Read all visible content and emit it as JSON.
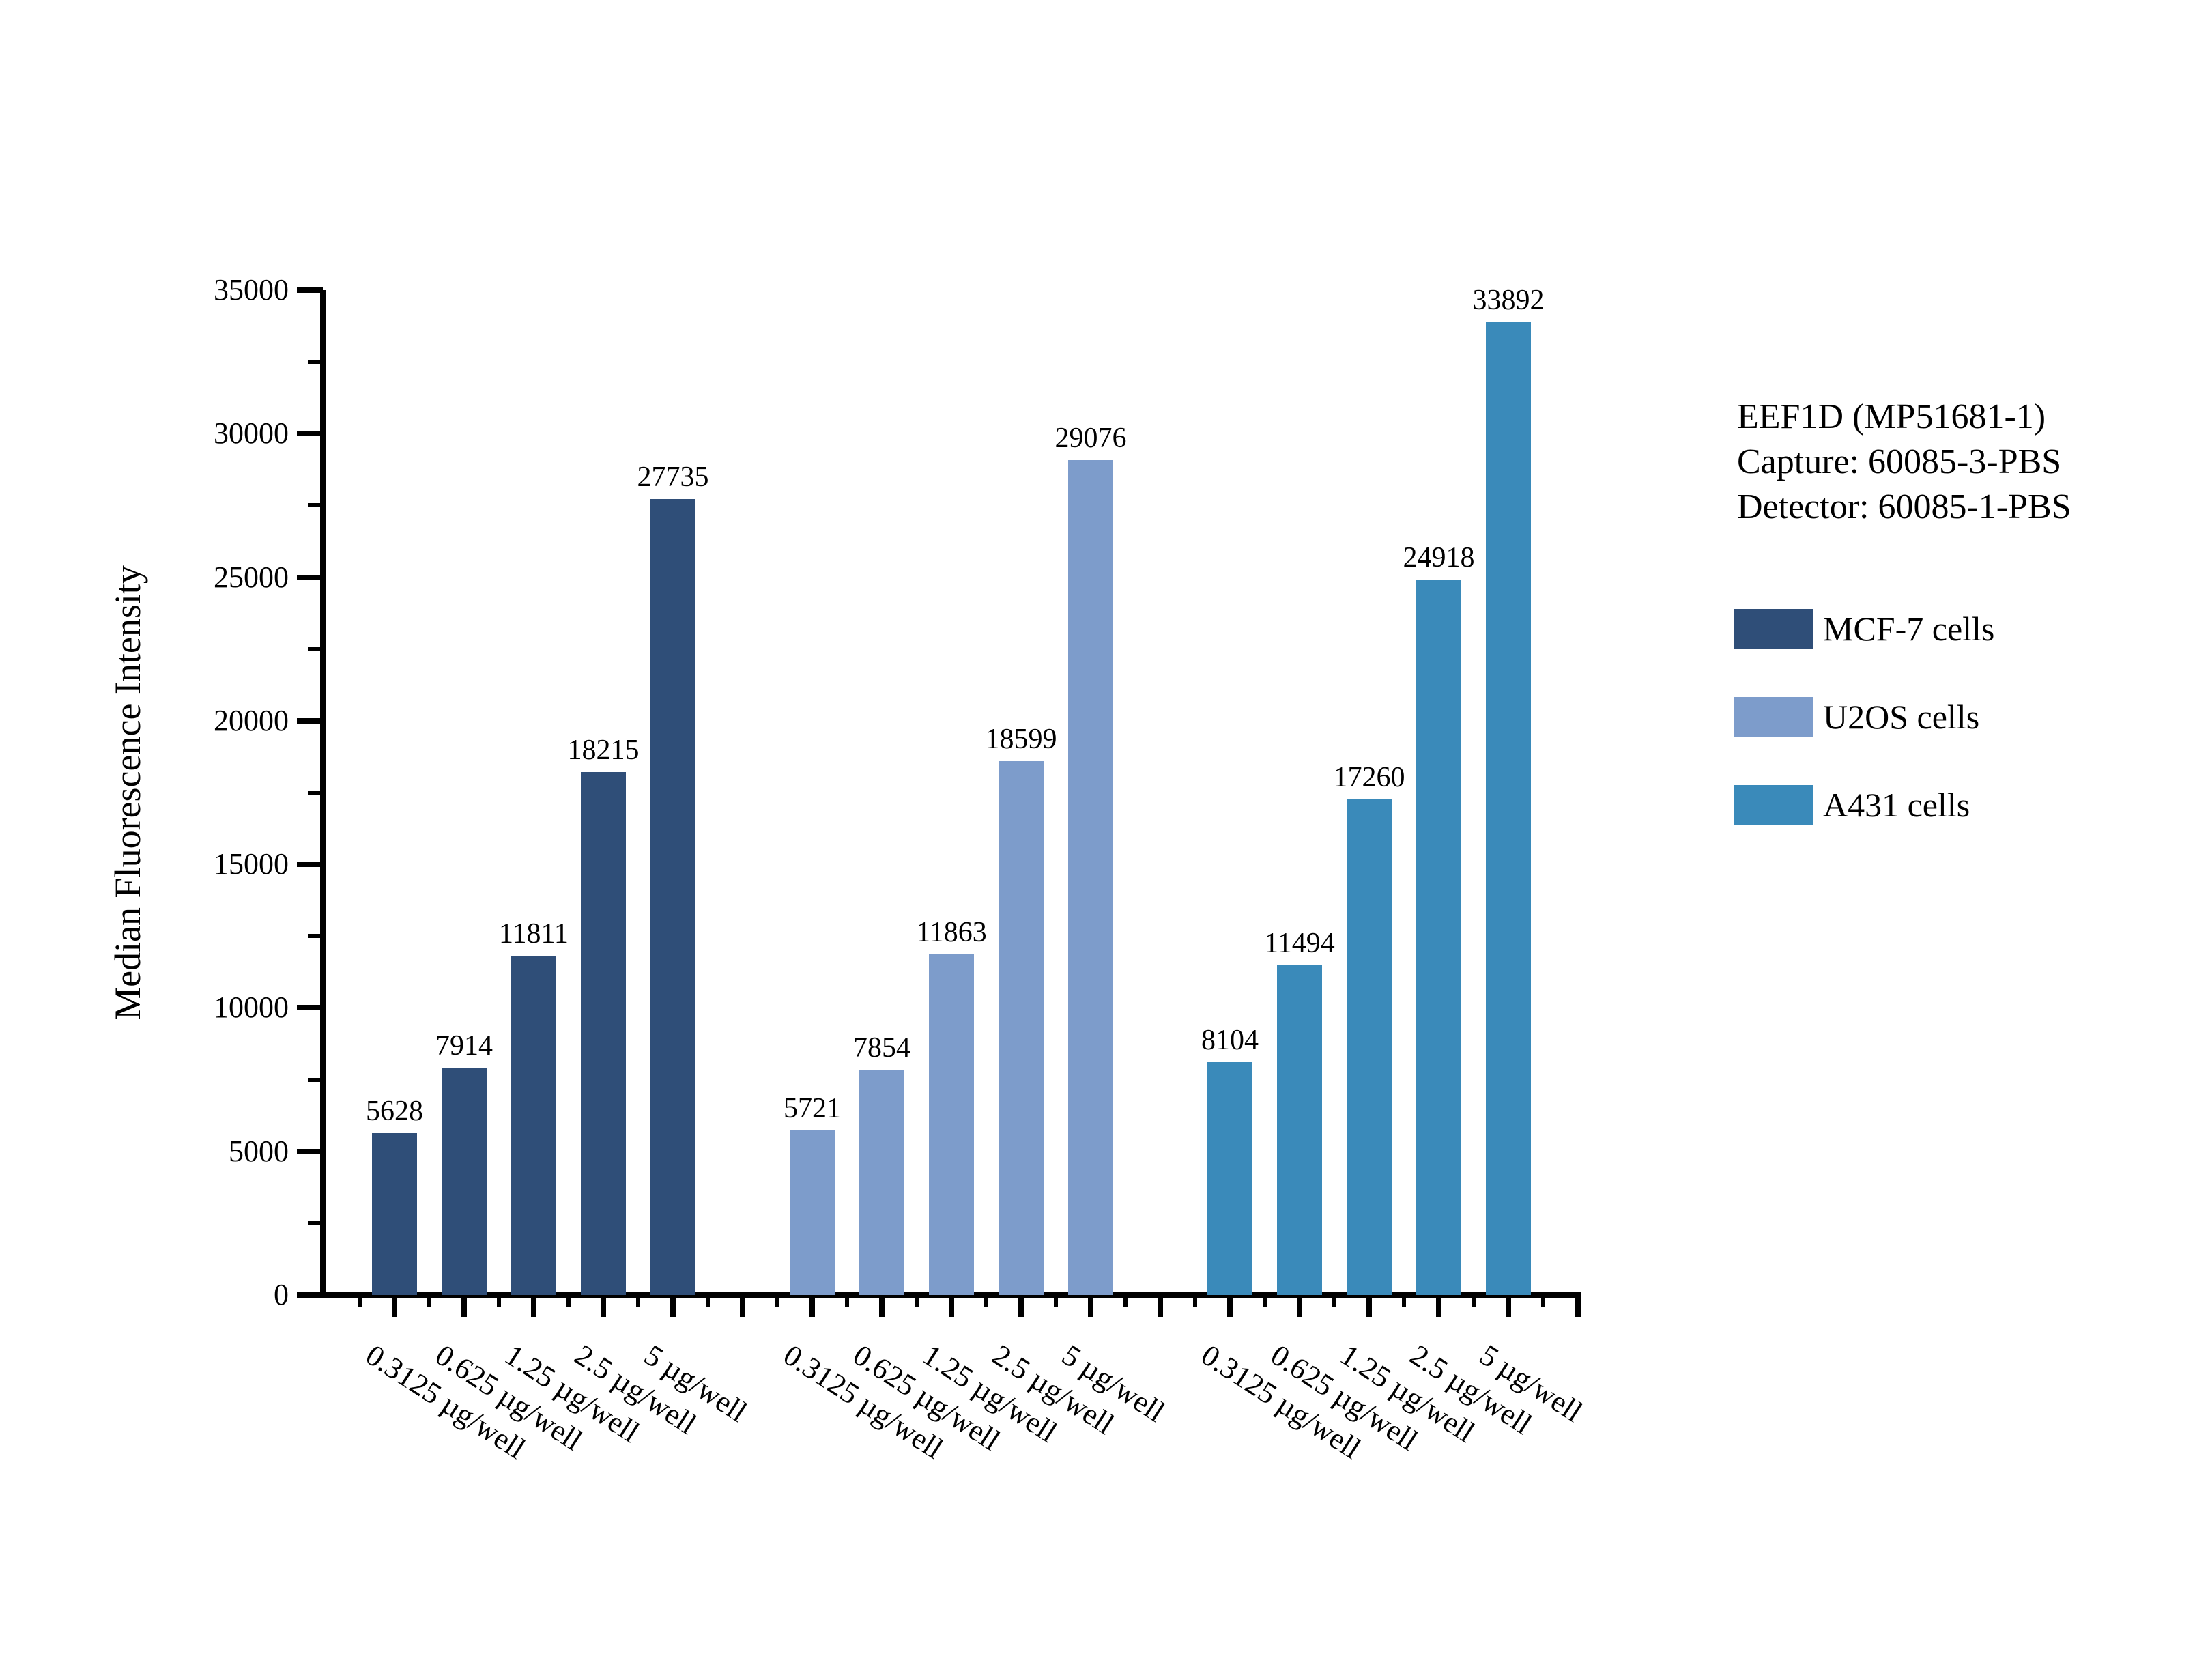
{
  "chart_data": {
    "type": "bar",
    "title_block": [
      "EEF1D (MP51681-1)",
      "Capture: 60085-3-PBS",
      "Detector: 60085-1-PBS"
    ],
    "ylabel": "Median Fluorescence Intensity",
    "xlabel": "",
    "ylim": [
      0,
      35000
    ],
    "y_major_step": 5000,
    "y_minor_step": 2500,
    "y_tick_labels": [
      "0",
      "5000",
      "10000",
      "15000",
      "20000",
      "25000",
      "30000",
      "35000"
    ],
    "categories": [
      "0.3125 µg/well",
      "0.625 µg/well",
      "1.25 µg/well",
      "2.5 µg/well",
      "5 µg/well"
    ],
    "series": [
      {
        "name": "MCF-7 cells",
        "color": "#2F4E78",
        "values": [
          5628,
          7914,
          11811,
          18215,
          27735
        ]
      },
      {
        "name": "U2OS cells",
        "color": "#7D9CCB",
        "values": [
          5721,
          7854,
          11863,
          18599,
          29076
        ]
      },
      {
        "name": "A431 cells",
        "color": "#3A8ABA",
        "values": [
          8104,
          11494,
          17260,
          24918,
          33892
        ]
      }
    ],
    "legend_position": "right",
    "grid": false,
    "background": "#FFFFFF",
    "axis_color": "#000000"
  }
}
